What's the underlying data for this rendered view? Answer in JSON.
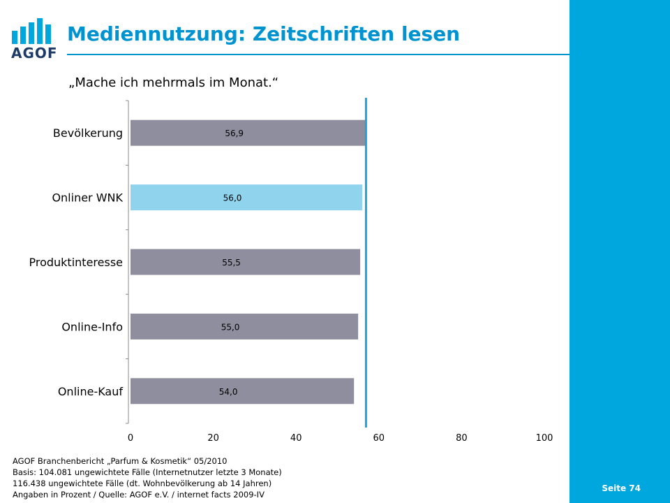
{
  "header": {
    "logo_text": "AGOF",
    "title": "Mediennutzung: Zeitschriften lesen",
    "subtitle": "„Mache ich mehrmals im Monat.“"
  },
  "footer": {
    "lines": [
      "AGOF Branchenbericht „Parfum & Kosmetik“ 05/2010",
      "Basis: 104.081 ungewichtete Fälle (Internetnutzer letzte 3 Monate)",
      "116.438 ungewichtete Fälle (dt. Wohnbevölkerung ab 14 Jahren)",
      "Angaben in Prozent / Quelle: AGOF e.V. / internet facts 2009-IV"
    ],
    "page_label": "Seite 74"
  },
  "colors": {
    "accent": "#00a6de",
    "title": "#0093d0",
    "bar_default": "#8e8e9e",
    "bar_highlight": "#8fd3ec",
    "reference_line": "#1ba6d6",
    "logo_dark": "#1e3a66"
  },
  "chart_data": {
    "type": "bar",
    "orientation": "horizontal",
    "categories": [
      "Bevölkerung",
      "Onliner WNK",
      "Produktinteresse",
      "Online-Info",
      "Online-Kauf"
    ],
    "values": [
      56.9,
      56.0,
      55.5,
      55.0,
      54.0
    ],
    "value_labels": [
      "56,9",
      "56,0",
      "55,5",
      "55,0",
      "54,0"
    ],
    "highlight_index": 1,
    "reference_value": 56.9,
    "xlim": [
      0,
      100
    ],
    "x_ticks": [
      0,
      20,
      40,
      60,
      80,
      100
    ],
    "grid": false
  }
}
